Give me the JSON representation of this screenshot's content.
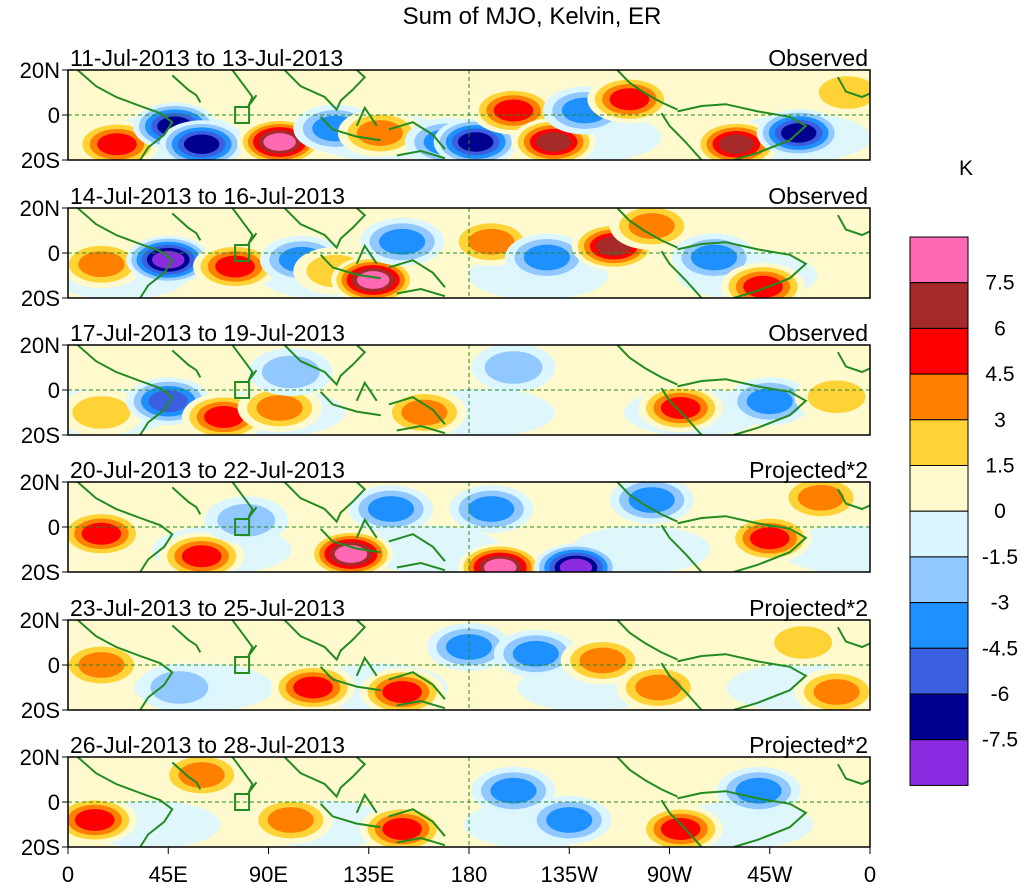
{
  "chart_data": {
    "type": "heatmap",
    "title": "Sum of MJO, Kelvin, ER",
    "variable": "Sum of MJO, Kelvin, ER anomaly",
    "units_label": "K",
    "x_axis": {
      "range": [
        0,
        360
      ],
      "ticks": [
        {
          "lon": 0,
          "label": "0"
        },
        {
          "lon": 45,
          "label": "45E"
        },
        {
          "lon": 90,
          "label": "90E"
        },
        {
          "lon": 135,
          "label": "135E"
        },
        {
          "lon": 180,
          "label": "180"
        },
        {
          "lon": 225,
          "label": "135W"
        },
        {
          "lon": 270,
          "label": "90W"
        },
        {
          "lon": 315,
          "label": "45W"
        },
        {
          "lon": 360,
          "label": "0"
        }
      ]
    },
    "y_axis": {
      "range": [
        -20,
        20
      ],
      "ticks": [
        {
          "lat": 20,
          "label": "20N"
        },
        {
          "lat": 0,
          "label": "0"
        },
        {
          "lat": -20,
          "label": "20S"
        }
      ]
    },
    "panels": [
      {
        "period": "11-Jul-2013 to 13-Jul-2013",
        "status": "Observed",
        "features": [
          {
            "lon": 22,
            "lat": -13,
            "value": 5.8
          },
          {
            "lon": 48,
            "lat": -5,
            "value": -7.2
          },
          {
            "lon": 60,
            "lat": -13,
            "value": -6.4
          },
          {
            "lon": 95,
            "lat": -12,
            "value": 7.8
          },
          {
            "lon": 120,
            "lat": -6,
            "value": -3.5
          },
          {
            "lon": 140,
            "lat": -8,
            "value": 4.2
          },
          {
            "lon": 170,
            "lat": -12,
            "value": -3.2
          },
          {
            "lon": 183,
            "lat": -12,
            "value": -6.4
          },
          {
            "lon": 200,
            "lat": 2,
            "value": 5.2
          },
          {
            "lon": 218,
            "lat": -12,
            "value": 6.6
          },
          {
            "lon": 232,
            "lat": 2,
            "value": -3.8
          },
          {
            "lon": 252,
            "lat": 7,
            "value": 4.8
          },
          {
            "lon": 300,
            "lat": -13,
            "value": 6.2
          },
          {
            "lon": 328,
            "lat": -8,
            "value": -7.0
          },
          {
            "lon": 350,
            "lat": 10,
            "value": 3.0
          }
        ]
      },
      {
        "period": "14-Jul-2013 to 16-Jul-2013",
        "status": "Observed",
        "features": [
          {
            "lon": 15,
            "lat": -5,
            "value": 3.2
          },
          {
            "lon": 45,
            "lat": -3,
            "value": -7.6
          },
          {
            "lon": 75,
            "lat": -6,
            "value": 5.5
          },
          {
            "lon": 105,
            "lat": -3,
            "value": -4.5
          },
          {
            "lon": 120,
            "lat": -8,
            "value": 3.0
          },
          {
            "lon": 137,
            "lat": -12,
            "value": 7.6
          },
          {
            "lon": 150,
            "lat": 5,
            "value": -3.5
          },
          {
            "lon": 190,
            "lat": 5,
            "value": 4.0
          },
          {
            "lon": 215,
            "lat": -2,
            "value": -4.2
          },
          {
            "lon": 245,
            "lat": 3,
            "value": 6.2
          },
          {
            "lon": 262,
            "lat": 12,
            "value": 3.6
          },
          {
            "lon": 290,
            "lat": -2,
            "value": -3.8
          },
          {
            "lon": 312,
            "lat": -15,
            "value": 4.6
          }
        ]
      },
      {
        "period": "17-Jul-2013 to 19-Jul-2013",
        "status": "Observed",
        "features": [
          {
            "lon": 15,
            "lat": -10,
            "value": 3.0
          },
          {
            "lon": 45,
            "lat": -5,
            "value": -4.8
          },
          {
            "lon": 70,
            "lat": -12,
            "value": 5.8
          },
          {
            "lon": 95,
            "lat": -8,
            "value": 4.0
          },
          {
            "lon": 100,
            "lat": 8,
            "value": -3.0
          },
          {
            "lon": 160,
            "lat": -10,
            "value": 4.5
          },
          {
            "lon": 200,
            "lat": 10,
            "value": -2.0
          },
          {
            "lon": 275,
            "lat": -8,
            "value": 5.8
          },
          {
            "lon": 315,
            "lat": -5,
            "value": -4.0
          },
          {
            "lon": 345,
            "lat": -3,
            "value": 3.0
          }
        ]
      },
      {
        "period": "20-Jul-2013 to 22-Jul-2013",
        "status": "Projected*2",
        "features": [
          {
            "lon": 15,
            "lat": -3,
            "value": 4.6
          },
          {
            "lon": 60,
            "lat": -13,
            "value": 5.6
          },
          {
            "lon": 80,
            "lat": 3,
            "value": -2.5
          },
          {
            "lon": 127,
            "lat": -12,
            "value": 7.8
          },
          {
            "lon": 145,
            "lat": 8,
            "value": -3.8
          },
          {
            "lon": 190,
            "lat": 8,
            "value": -4.5
          },
          {
            "lon": 194,
            "lat": -18,
            "value": 8.6
          },
          {
            "lon": 228,
            "lat": -18,
            "value": -8.2
          },
          {
            "lon": 262,
            "lat": 12,
            "value": -4.2
          },
          {
            "lon": 315,
            "lat": -5,
            "value": 5.4
          },
          {
            "lon": 338,
            "lat": 13,
            "value": 3.2
          }
        ]
      },
      {
        "period": "23-Jul-2013 to 25-Jul-2013",
        "status": "Projected*2",
        "features": [
          {
            "lon": 15,
            "lat": 0,
            "value": 3.2
          },
          {
            "lon": 50,
            "lat": -10,
            "value": -3.0
          },
          {
            "lon": 110,
            "lat": -10,
            "value": 4.6
          },
          {
            "lon": 150,
            "lat": -12,
            "value": 5.2
          },
          {
            "lon": 180,
            "lat": 8,
            "value": -4.2
          },
          {
            "lon": 210,
            "lat": 5,
            "value": -4.0
          },
          {
            "lon": 240,
            "lat": 2,
            "value": 4.0
          },
          {
            "lon": 265,
            "lat": -10,
            "value": 3.2
          },
          {
            "lon": 330,
            "lat": 10,
            "value": 3.0
          },
          {
            "lon": 345,
            "lat": -12,
            "value": 3.5
          }
        ]
      },
      {
        "period": "26-Jul-2013 to 28-Jul-2013",
        "status": "Projected*2",
        "features": [
          {
            "lon": 12,
            "lat": -8,
            "value": 6.0
          },
          {
            "lon": 60,
            "lat": 12,
            "value": 3.5
          },
          {
            "lon": 100,
            "lat": -8,
            "value": 4.5
          },
          {
            "lon": 150,
            "lat": -12,
            "value": 6.0
          },
          {
            "lon": 200,
            "lat": 5,
            "value": -3.5
          },
          {
            "lon": 225,
            "lat": -8,
            "value": -4.0
          },
          {
            "lon": 275,
            "lat": -12,
            "value": 4.8
          },
          {
            "lon": 310,
            "lat": 5,
            "value": -3.2
          }
        ]
      }
    ],
    "colorbar": {
      "levels": [
        -7.5,
        -6,
        -4.5,
        -3,
        -1.5,
        0,
        1.5,
        3,
        4.5,
        6,
        7.5
      ],
      "level_labels": [
        "-7.5",
        "-6",
        "-4.5",
        "-3",
        "-1.5",
        "0",
        "1.5",
        "3",
        "4.5",
        "6",
        "7.5"
      ],
      "colors": [
        "#8a2be2",
        "#000090",
        "#3a5fe0",
        "#1e90ff",
        "#90c8ff",
        "#dcf6ff",
        "#fffacd",
        "#ffd336",
        "#ff7f00",
        "#ff0000",
        "#a52a2a",
        "#ff69b4"
      ]
    },
    "overlay_colors": {
      "coastline": "#228b22",
      "box": "#228b22",
      "grid": "#228b22"
    }
  }
}
